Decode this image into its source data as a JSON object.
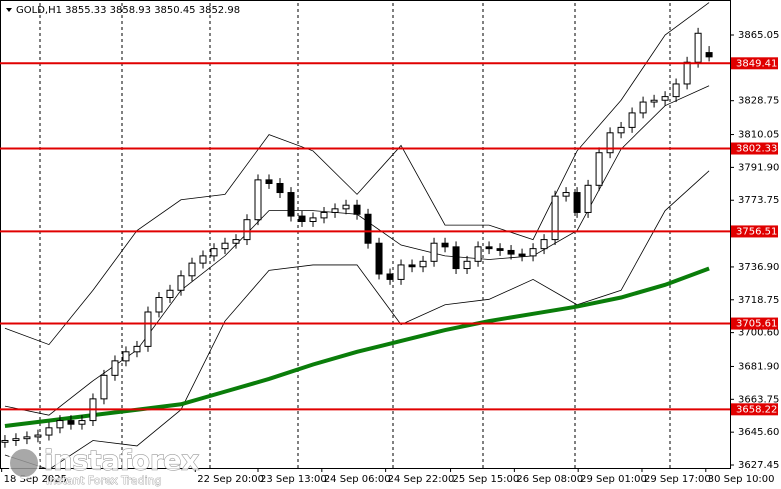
{
  "chart_data": {
    "type": "candlestick",
    "title": "GOLD,H1  3855.33 3858.93 3850.45 3852.98",
    "xlim": [
      -0.45,
      65.9
    ],
    "ylim": [
      3625.8,
      3882.73
    ],
    "yticks": [
      3865.05,
      3828.75,
      3810.05,
      {
        "value": 3791.9,
        "label": "3791.90"
      },
      3773.75,
      {
        "value": 3736.9,
        "label": "3736.90"
      },
      3718.75,
      {
        "value": 3700.6,
        "label": "3700.60"
      },
      {
        "value": 3681.9,
        "label": "3681.90"
      },
      3663.75,
      {
        "value": 3645.6,
        "label": "3645.60"
      },
      3627.45
    ],
    "xticks": [
      {
        "value": -0.3,
        "label": "18 Sep 2025"
      },
      {
        "value": 17.3,
        "label": "22 Sep 20:00"
      },
      {
        "value": 23,
        "label": "23 Sep 13:00"
      },
      {
        "value": 28.8,
        "label": "24 Sep 06:00"
      },
      {
        "value": 34.6,
        "label": "24 Sep 22:00"
      },
      {
        "value": 40.5,
        "label": "25 Sep 15:00"
      },
      {
        "value": 46.3,
        "label": "26 Sep 08:00"
      },
      {
        "value": 52.1,
        "label": "29 Sep 01:00"
      },
      {
        "value": 57.9,
        "label": "29 Sep 17:00"
      },
      {
        "value": 63.7,
        "label": "30 Sep 10:00"
      }
    ],
    "up_color": "#ffffff",
    "down_color": "#000000",
    "open": [
      3640,
      3641,
      3642,
      3643,
      3644,
      3648,
      3652,
      3650,
      3652,
      3664,
      3677,
      3685,
      3690,
      3693,
      3712,
      3720,
      3724,
      3732,
      3739,
      3743,
      3747,
      3750,
      3752,
      3763,
      3785,
      3783,
      3778,
      3765,
      3762,
      3764,
      3767,
      3769,
      3771,
      3766,
      3750,
      3733,
      3730,
      3738,
      3737,
      3740,
      3750,
      3748,
      3736,
      3740,
      3748,
      3747,
      3746,
      3744,
      3743,
      3747,
      3752,
      3776,
      3778,
      3767,
      3782,
      3800,
      3811,
      3814,
      3822,
      3828,
      3829,
      3831,
      3838,
      3850,
      3855.33
    ],
    "high": [
      3644,
      3645,
      3646,
      3647,
      3651,
      3655,
      3655,
      3655,
      3667,
      3680,
      3688,
      3693,
      3696,
      3715,
      3723,
      3727,
      3735,
      3742,
      3746,
      3750,
      3753,
      3755,
      3766,
      3788,
      3788,
      3786,
      3781,
      3768,
      3767,
      3770,
      3772,
      3774,
      3774,
      3769,
      3753,
      3736,
      3741,
      3741,
      3743,
      3753,
      3753,
      3751,
      3743,
      3751,
      3751,
      3750,
      3749,
      3747,
      3750,
      3755,
      3779,
      3781,
      3781,
      3785,
      3803,
      3814,
      3817,
      3825,
      3831,
      3832,
      3834,
      3841,
      3853,
      3869,
      3858.93
    ],
    "low": [
      3637,
      3638,
      3639,
      3640,
      3641,
      3645,
      3647,
      3647,
      3649,
      3661,
      3674,
      3682,
      3687,
      3690,
      3709,
      3717,
      3721,
      3729,
      3736,
      3740,
      3744,
      3747,
      3749,
      3760,
      3780,
      3775,
      3762,
      3759,
      3759,
      3761,
      3764,
      3766,
      3763,
      3747,
      3730,
      3727,
      3727,
      3734,
      3734,
      3737,
      3745,
      3733,
      3733,
      3737,
      3744,
      3743,
      3741,
      3740,
      3740,
      3744,
      3749,
      3773,
      3764,
      3764,
      3779,
      3797,
      3808,
      3811,
      3819,
      3825,
      3826,
      3828,
      3835,
      3847,
      3850.45
    ],
    "close": [
      3641,
      3642,
      3643,
      3644,
      3648,
      3652,
      3650,
      3652,
      3664,
      3677,
      3685,
      3690,
      3693,
      3712,
      3720,
      3724,
      3732,
      3739,
      3743,
      3747,
      3750,
      3752,
      3763,
      3785,
      3783,
      3778,
      3765,
      3762,
      3764,
      3767,
      3769,
      3771,
      3766,
      3750,
      3733,
      3730,
      3738,
      3737,
      3740,
      3750,
      3748,
      3736,
      3740,
      3748,
      3747,
      3746,
      3744,
      3743,
      3747,
      3752,
      3776,
      3778,
      3767,
      3782,
      3800,
      3811,
      3814,
      3822,
      3828,
      3829,
      3831,
      3838,
      3850,
      3866,
      3852.98
    ],
    "lines": [
      {
        "color": "#000000",
        "width": 0.8,
        "x": [
          0,
          4,
          8,
          12,
          16,
          20,
          24,
          28,
          32,
          36,
          40,
          44,
          48,
          52,
          56,
          60,
          64
        ],
        "values": [
          3703,
          3694,
          3724,
          3757,
          3774,
          3777,
          3810,
          3801,
          3777,
          3804,
          3760,
          3760,
          3752,
          3801,
          3829,
          3865,
          3883
        ]
      },
      {
        "color": "#000000",
        "width": 0.8,
        "x": [
          0,
          4,
          8,
          12,
          16,
          20,
          24,
          28,
          32,
          36,
          40,
          44,
          48,
          52,
          56,
          60,
          64
        ],
        "values": [
          3660,
          3655,
          3674,
          3691,
          3724,
          3743,
          3768,
          3768,
          3766,
          3749,
          3743,
          3741,
          3743,
          3757,
          3802,
          3826,
          3837
        ]
      },
      {
        "color": "#000000",
        "width": 0.8,
        "x": [
          0,
          4,
          8,
          12,
          16,
          20,
          24,
          28,
          32,
          36,
          40,
          44,
          48,
          52,
          56,
          60,
          64
        ],
        "values": [
          3633,
          3625,
          3641,
          3638,
          3658,
          3707,
          3735,
          3738,
          3738,
          3705,
          3716,
          3719,
          3730,
          3716,
          3724,
          3768,
          3790
        ]
      },
      {
        "color": "#0a7d0a",
        "width": 4,
        "x": [
          0,
          4,
          8,
          12,
          16,
          20,
          24,
          28,
          32,
          36,
          40,
          44,
          48,
          52,
          56,
          60,
          64
        ],
        "values": [
          3649,
          3652,
          3655,
          3658,
          3661,
          3668,
          3675,
          3683,
          3690,
          3696,
          3702,
          3707,
          3711,
          3715,
          3720,
          3727,
          3736
        ]
      }
    ],
    "level_color": "#e00000",
    "levels": [
      3849.41,
      3802.33,
      3756.51,
      3705.61,
      3658.22
    ],
    "watermark": {
      "brand": "instaforex",
      "tagline": "Instant Forex Trading"
    }
  }
}
